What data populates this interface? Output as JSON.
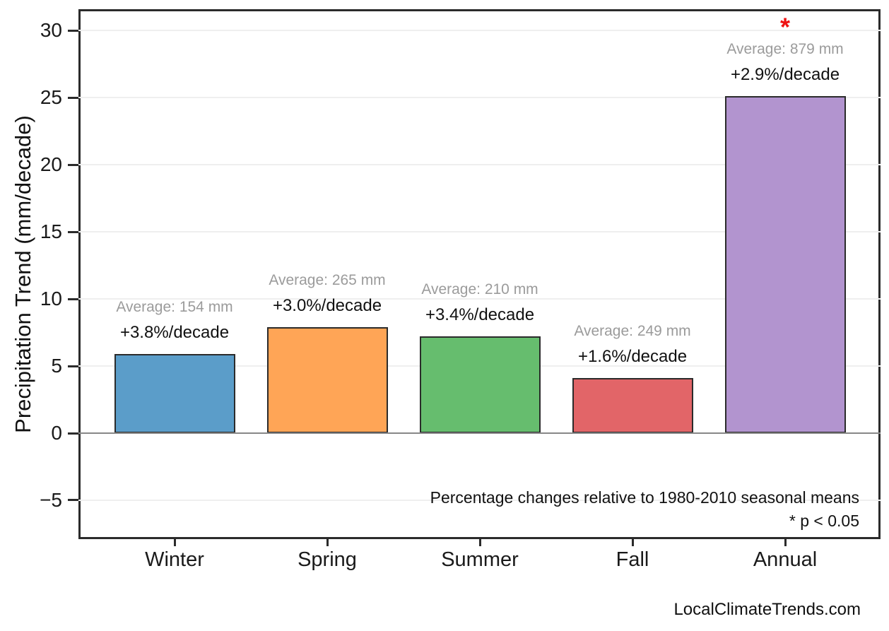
{
  "chart_data": {
    "type": "bar",
    "categories": [
      "Winter",
      "Spring",
      "Summer",
      "Fall",
      "Annual"
    ],
    "values": [
      5.9,
      7.9,
      7.2,
      4.1,
      25.1
    ],
    "bar_labels": [
      {
        "average": "Average: 154 mm",
        "trend": "+3.8%/decade",
        "significant": false
      },
      {
        "average": "Average: 265 mm",
        "trend": "+3.0%/decade",
        "significant": false
      },
      {
        "average": "Average: 210 mm",
        "trend": "+3.4%/decade",
        "significant": false
      },
      {
        "average": "Average: 249 mm",
        "trend": "+1.6%/decade",
        "significant": false
      },
      {
        "average": "Average: 879 mm",
        "trend": "+2.9%/decade",
        "significant": true
      }
    ],
    "significance_marker": "*",
    "title": "",
    "xlabel": "",
    "ylabel": "Precipitation Trend (mm/decade)",
    "yticks": [
      30,
      25,
      20,
      15,
      10,
      5,
      0,
      -5
    ],
    "ylim": [
      -7.9,
      31.6
    ],
    "grid": true,
    "legend": false,
    "note": "Percentage changes relative to 1980-2010 seasonal means",
    "significance_note": "* p < 0.05",
    "colors": {
      "bars": [
        "#5b9dc9",
        "#ffa556",
        "#66bd6e",
        "#e26568",
        "#b294cf"
      ],
      "bar_edge": "#2b2b2b",
      "significance": "#ee1212",
      "average_label": "#9b9b9b",
      "trend_label": "#111111",
      "zero_line": "#888888",
      "gridline": "#efefef"
    }
  },
  "footer": {
    "watermark": "LocalClimateTrends.com"
  }
}
